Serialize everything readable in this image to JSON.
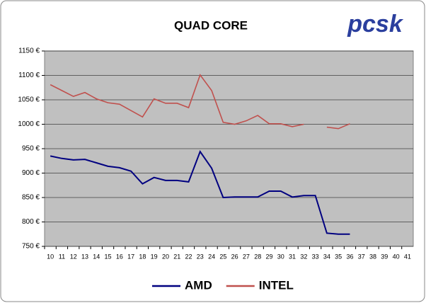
{
  "chart_data": {
    "type": "line",
    "title": "QUAD CORE",
    "logo": "pcsk",
    "categories": [
      10,
      11,
      12,
      13,
      14,
      15,
      16,
      17,
      18,
      19,
      20,
      21,
      22,
      23,
      24,
      25,
      26,
      27,
      28,
      29,
      30,
      31,
      32,
      33,
      34,
      35,
      36,
      37,
      38,
      39,
      40,
      41
    ],
    "series": [
      {
        "name": "AMD",
        "color": "#000080",
        "values": [
          935,
          930,
          927,
          928,
          921,
          914,
          911,
          904,
          878,
          891,
          885,
          885,
          882,
          944,
          910,
          850,
          851,
          851,
          851,
          863,
          863,
          851,
          854,
          854,
          777,
          775,
          775,
          null,
          null,
          null,
          null,
          null
        ]
      },
      {
        "name": "INTEL",
        "color": "#c0504d",
        "values": [
          1081,
          1069,
          1057,
          1065,
          1052,
          1044,
          1041,
          1028,
          1015,
          1052,
          1043,
          1043,
          1034,
          1101,
          1069,
          1004,
          1000,
          1007,
          1018,
          1001,
          1001,
          995,
          1000,
          null,
          994,
          991,
          1001,
          null,
          null,
          null,
          null,
          null
        ]
      }
    ],
    "ylim": [
      750,
      1150
    ],
    "yticks": [
      {
        "value": 750,
        "label": "750 €"
      },
      {
        "value": 800,
        "label": "800 €"
      },
      {
        "value": 850,
        "label": "850 €"
      },
      {
        "value": 900,
        "label": "900 €"
      },
      {
        "value": 950,
        "label": "950 €"
      },
      {
        "value": 1000,
        "label": "1000 €"
      },
      {
        "value": 1050,
        "label": "1050 €"
      },
      {
        "value": 1100,
        "label": "1100 €"
      },
      {
        "value": 1150,
        "label": "1150 €"
      }
    ],
    "grid": true,
    "plot_background": "#c0c0c0",
    "legend": "bottom"
  }
}
